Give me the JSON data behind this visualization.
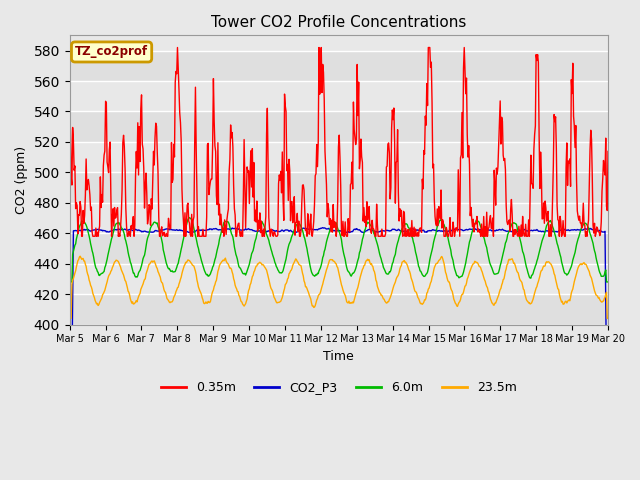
{
  "title": "Tower CO2 Profile Concentrations",
  "xlabel": "Time",
  "ylabel": "CO2 (ppm)",
  "ylim": [
    400,
    590
  ],
  "yticks": [
    400,
    420,
    440,
    460,
    480,
    500,
    520,
    540,
    560,
    580
  ],
  "bg_color": "#e8e8e8",
  "series": {
    "0.35m": {
      "color": "#ff0000",
      "lw": 1.0
    },
    "CO2_P3": {
      "color": "#0000cc",
      "lw": 1.0
    },
    "6.0m": {
      "color": "#00bb00",
      "lw": 1.0
    },
    "23.5m": {
      "color": "#ffaa00",
      "lw": 1.0
    }
  },
  "xtick_labels": [
    "Mar 5",
    "Mar 6",
    "Mar 7",
    "Mar 8",
    "Mar 9",
    "Mar 10",
    "Mar 11",
    "Mar 12",
    "Mar 13",
    "Mar 14",
    "Mar 15",
    "Mar 16",
    "Mar 17",
    "Mar 18",
    "Mar 19",
    "Mar 20"
  ],
  "annotation_text": "TZ_co2prof",
  "annotation_bg": "#ffffcc",
  "annotation_border": "#cc9900"
}
